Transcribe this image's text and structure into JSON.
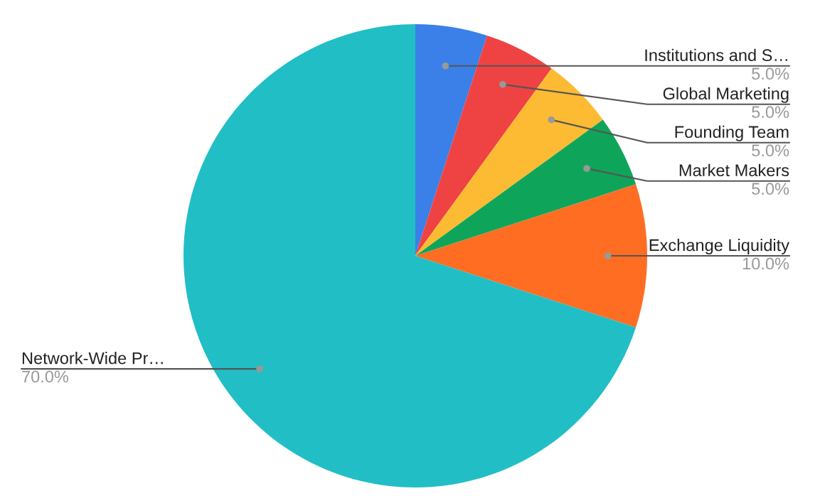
{
  "chart_data": {
    "type": "pie",
    "categories": [
      "Institutions and S…",
      "Global Marketing",
      "Founding Team",
      "Market Makers",
      "Exchange Liquidity",
      "Network-Wide Pr…"
    ],
    "values": [
      5,
      5,
      5,
      5,
      10,
      70
    ],
    "colors": [
      "#3a80e8",
      "#ef4343",
      "#fdbb33",
      "#0ea55a",
      "#ff6d22",
      "#21bec6"
    ],
    "value_labels": [
      "5.0%",
      "5.0%",
      "5.0%",
      "5.0%",
      "10.0%",
      "70.0%"
    ],
    "legend": false
  }
}
